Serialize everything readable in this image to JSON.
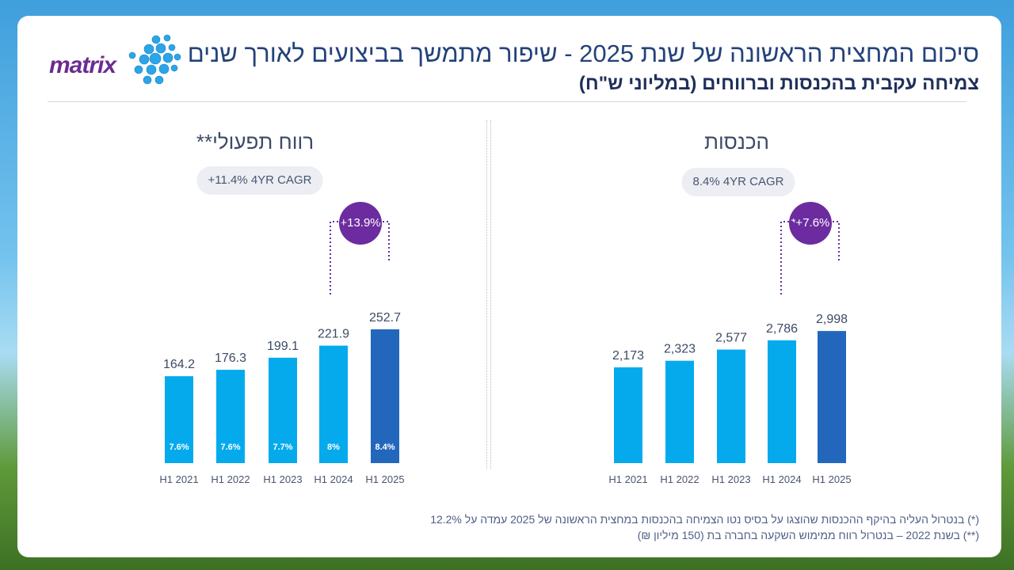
{
  "title": "סיכום המחצית הראשונה של שנת 2025 - שיפור מתמשך בביצועים לאורך שנים",
  "subtitle": "צמיחה עקבית בהכנסות וברווחים (במליוני ש\"ח)",
  "logo": {
    "text": "matrix",
    "accent_color": "#6b2c91",
    "dot_color": "#2aa6e8"
  },
  "colors": {
    "bar": "#05aaed",
    "bar_highlight": "#2367bd",
    "bubble": "#6c2c9f",
    "connector": "#6c2c9f"
  },
  "footnotes": [
    "(*) בנטרול העליה בהיקף ההכנסות שהוצגו על בסיס נטו הצמיחה בהכנסות במחצית הראשונה של 2025 עמדה על 12.2%",
    "(**) בשנת 2022 – בנטרול רווח ממימוש השקעה בחברה בת (150 מיליון ₪)"
  ],
  "chart_data": [
    {
      "type": "bar",
      "title": "הכנסות",
      "cagr": "8.4% 4YR CAGR",
      "growth_bubble": "*+7.6%",
      "categories": [
        "H1 2021",
        "H1 2022",
        "H1 2023",
        "H1 2024",
        "H1 2025"
      ],
      "values": [
        2173,
        2323,
        2577,
        2786,
        2998
      ],
      "value_labels": [
        "2,173",
        "2,323",
        "2,577",
        "2,786",
        "2,998"
      ],
      "inner_labels": [
        "",
        "",
        "",
        "",
        ""
      ],
      "highlight_index": 4,
      "ylim": [
        0,
        3000
      ]
    },
    {
      "type": "bar",
      "title": "רווח תפעולי**",
      "cagr": "+11.4% 4YR CAGR",
      "growth_bubble": "+13.9%",
      "categories": [
        "H1 2021",
        "H1 2022",
        "H1 2023",
        "H1 2024",
        "H1 2025"
      ],
      "values": [
        164.2,
        176.3,
        199.1,
        221.9,
        252.7
      ],
      "value_labels": [
        "164.2",
        "176.3",
        "199.1",
        "221.9",
        "252.7"
      ],
      "inner_labels": [
        "7.6%",
        "7.6%",
        "7.7%",
        "8%",
        "8.4%"
      ],
      "highlight_index": 4,
      "ylim": [
        0,
        252.7
      ]
    }
  ]
}
